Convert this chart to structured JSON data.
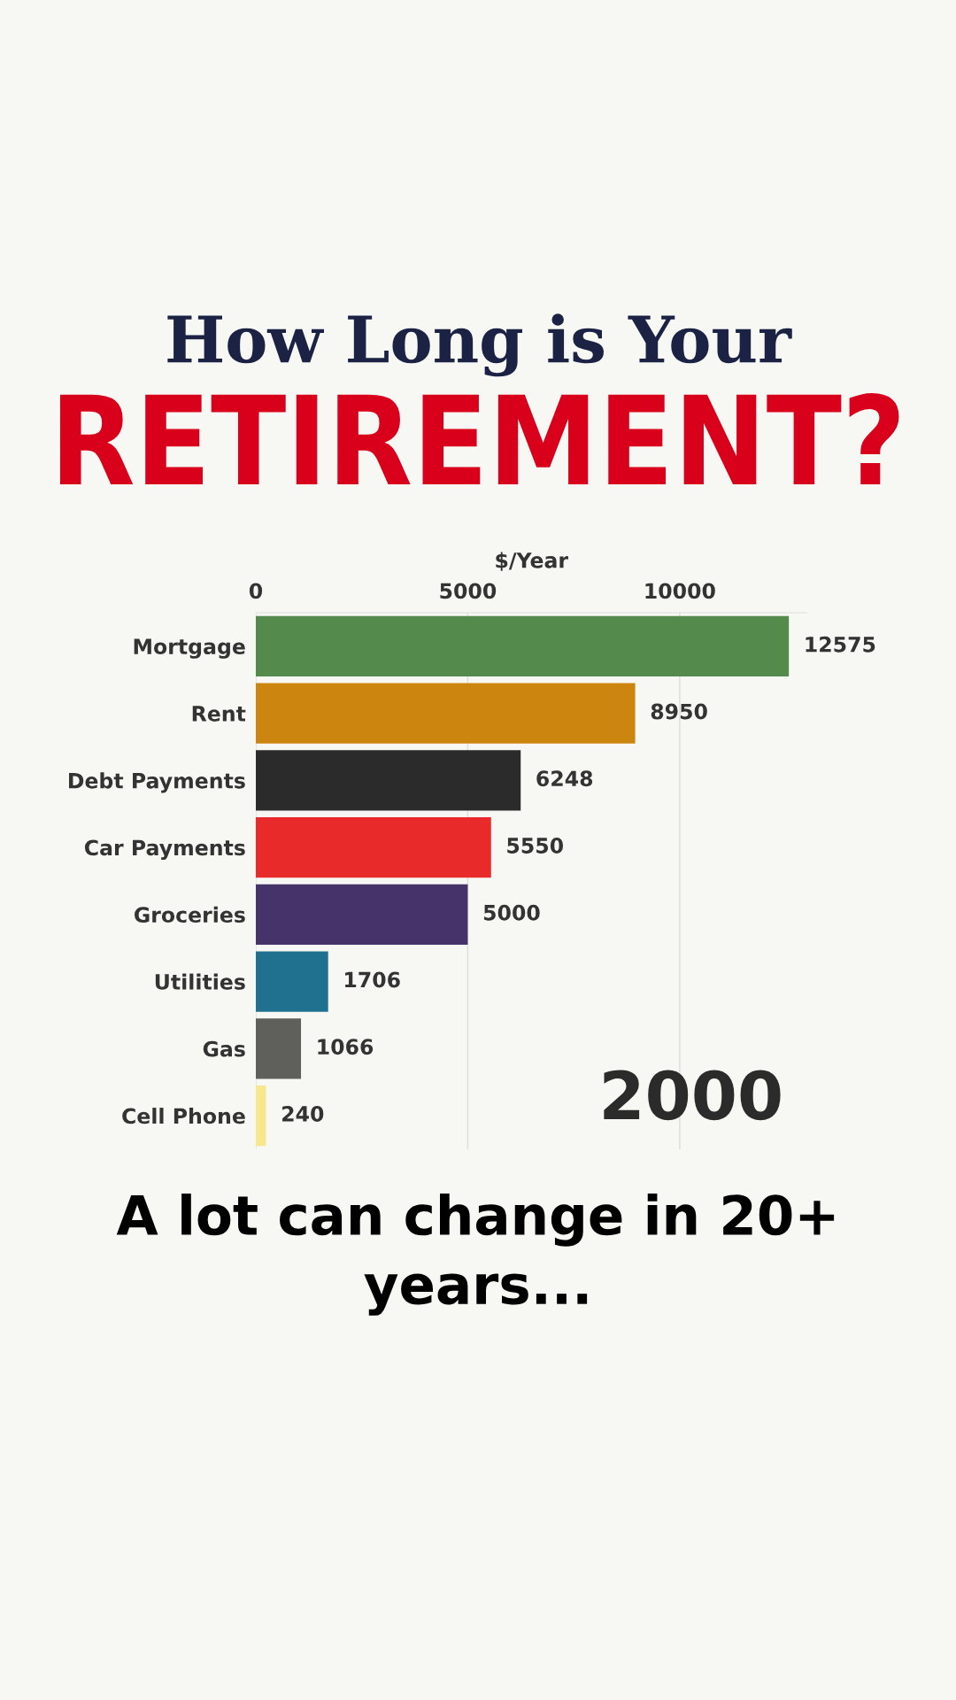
{
  "chart_data": {
    "type": "bar",
    "orientation": "horizontal",
    "title": "How Long is Your",
    "subtitle": "RETIREMENT?",
    "xlabel": "$/Year",
    "categories": [
      "Mortgage",
      "Rent",
      "Debt Payments",
      "Car Payments",
      "Groceries",
      "Utilities",
      "Gas",
      "Cell Phone"
    ],
    "values": [
      12575,
      8950,
      6248,
      5550,
      5000,
      1706,
      1066,
      240
    ],
    "colors": [
      "#548a4c",
      "#cc860f",
      "#2b2b2b",
      "#e92a2a",
      "#45336a",
      "#20708f",
      "#5f5f5c",
      "#f7e78c"
    ],
    "xlim": [
      0,
      13000
    ],
    "xticks": [
      0,
      5000,
      10000
    ],
    "grid": "x",
    "data_labels": true,
    "annotations": [
      "2000",
      "A lot can change in 20+ years..."
    ]
  }
}
